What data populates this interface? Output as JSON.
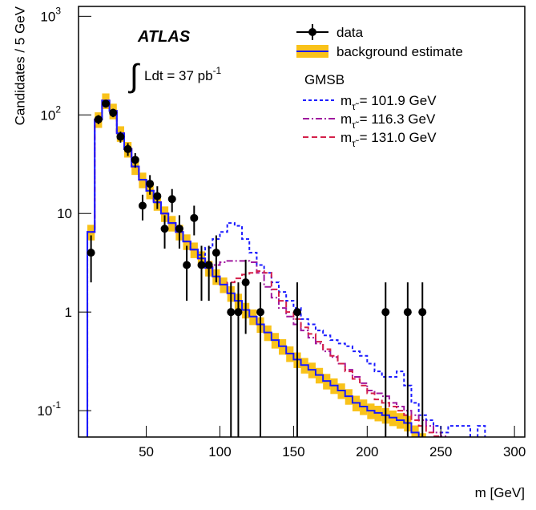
{
  "chart_data": {
    "type": "histogram",
    "y_label": "Candidates / 5 GeV",
    "x_label": "m [GeV]",
    "experiment": "ATLAS",
    "integral": "∫",
    "luminosity": "Ldt = 37 pb",
    "luminosity_exponent": "-1",
    "legend_header": "GMSB",
    "log_y": true,
    "xlim": [
      4,
      307
    ],
    "ylim": [
      0.054,
      1260
    ],
    "xticks": [
      50,
      100,
      150,
      200,
      250,
      300
    ],
    "yticks": [
      {
        "value": 0.1,
        "label": "10",
        "exponent": "-1"
      },
      1,
      10,
      {
        "value": 100,
        "label": "10",
        "exponent": "2"
      },
      {
        "value": 1000,
        "label": "10",
        "exponent": "3"
      }
    ],
    "bins": [
      10,
      15,
      20,
      25,
      30,
      35,
      40,
      45,
      50,
      55,
      60,
      65,
      70,
      75,
      80,
      85,
      90,
      95,
      100,
      105,
      110,
      115,
      120,
      125,
      130,
      135,
      140,
      145,
      150,
      155,
      160,
      165,
      170,
      175,
      180,
      185,
      190,
      195,
      200,
      205,
      210,
      215,
      220,
      225,
      230,
      235,
      240,
      245,
      250,
      255,
      260,
      265,
      270,
      275,
      280,
      285,
      290,
      295,
      300
    ],
    "data": {
      "name": "data",
      "color": "#000000",
      "x": [
        12.5,
        17.5,
        22.5,
        27.5,
        32.5,
        37.5,
        42.5,
        47.5,
        52.5,
        57.5,
        62.5,
        67.5,
        72.5,
        77.5,
        82.5,
        87.5,
        92.5,
        97.5,
        107.5,
        112.5,
        117.5,
        127.5,
        152.5,
        212.5,
        227.5,
        237.5
      ],
      "values": [
        4,
        90,
        130,
        105,
        60,
        45,
        35,
        12,
        20,
        15,
        7,
        14,
        7,
        3,
        9,
        3,
        3,
        4,
        1,
        1,
        2,
        1,
        1,
        1,
        1,
        1
      ],
      "errors": [
        2,
        9.5,
        11.4,
        10.2,
        7.7,
        6.7,
        5.9,
        3.5,
        4.5,
        3.9,
        2.6,
        3.7,
        2.6,
        1.7,
        3,
        1.7,
        1.7,
        2,
        1,
        1,
        1.4,
        1,
        1,
        1,
        1,
        1
      ]
    },
    "background": {
      "name": "background estimate",
      "color": "#1a1aff",
      "band_color": "#f9c21a",
      "relative_uncertainty": 0.18,
      "values": [
        6.5,
        90,
        140,
        110,
        65,
        45,
        30,
        22,
        17,
        13,
        10,
        8,
        6.5,
        5.2,
        4.3,
        3.5,
        2.8,
        2.3,
        1.9,
        1.55,
        1.3,
        1.05,
        0.9,
        0.75,
        0.62,
        0.52,
        0.45,
        0.38,
        0.33,
        0.29,
        0.26,
        0.23,
        0.2,
        0.18,
        0.16,
        0.14,
        0.12,
        0.11,
        0.1,
        0.095,
        0.09,
        0.085,
        0.08,
        0.075,
        0.06,
        0.05,
        0.045,
        0.04,
        0.035,
        0.03,
        0.03,
        0.03,
        0.03,
        0.03,
        0.03,
        0.03,
        0.03,
        0.03
      ]
    },
    "series": [
      {
        "symbol": "m",
        "symbol_subscript": "τ̃",
        "name": " = 101.9 GeV",
        "color": "#1a1aff",
        "dash": "4,3",
        "values": [
          6.5,
          90,
          140,
          110,
          65,
          45,
          30,
          22,
          17,
          13,
          10,
          8,
          6.5,
          5.2,
          4.3,
          3.8,
          4.5,
          5.5,
          6.5,
          8,
          7.5,
          5.5,
          4,
          3,
          2.5,
          2,
          1.6,
          1.3,
          1.1,
          0.85,
          0.75,
          0.65,
          0.58,
          0.52,
          0.48,
          0.45,
          0.4,
          0.36,
          0.3,
          0.25,
          0.22,
          0.22,
          0.25,
          0.18,
          0.12,
          0.09,
          0.08,
          0.07,
          0.06,
          0.07,
          0.07,
          0.07,
          0.05,
          0.07,
          0.05,
          0.04,
          0.04,
          0.04
        ]
      },
      {
        "symbol": "m",
        "symbol_subscript": "τ̃",
        "name": " = 116.3 GeV",
        "color": "#a0189f",
        "dash": "8,3,2,3",
        "values": [
          6.5,
          90,
          140,
          110,
          65,
          45,
          30,
          22,
          17,
          13,
          10,
          8,
          6.5,
          5.2,
          4.3,
          3.5,
          2.8,
          3,
          3.2,
          3.3,
          3.3,
          3.3,
          3.2,
          2.5,
          1.8,
          1.4,
          1.1,
          0.9,
          0.75,
          0.65,
          0.55,
          0.48,
          0.4,
          0.35,
          0.3,
          0.26,
          0.22,
          0.19,
          0.16,
          0.15,
          0.14,
          0.12,
          0.11,
          0.1,
          0.09,
          0.08,
          0.07,
          0.06,
          0.055,
          0.05,
          0.045,
          0.045,
          0.045,
          0.045,
          0.045,
          0.045,
          0.045,
          0.045
        ]
      },
      {
        "symbol": "m",
        "symbol_subscript": "τ̃",
        "name": " = 131.0 GeV",
        "color": "#d4204a",
        "dash": "7,4",
        "values": [
          6.5,
          90,
          140,
          110,
          65,
          45,
          30,
          22,
          17,
          13,
          10,
          8,
          6.5,
          5.2,
          4.3,
          3.5,
          2.8,
          2.3,
          1.9,
          2,
          2.2,
          2.4,
          2.5,
          2.6,
          2.5,
          1.7,
          1.3,
          1.0,
          0.85,
          0.7,
          0.6,
          0.5,
          0.42,
          0.36,
          0.3,
          0.25,
          0.21,
          0.18,
          0.15,
          0.13,
          0.12,
          0.11,
          0.1,
          0.09,
          0.08,
          0.07,
          0.06,
          0.055,
          0.05,
          0.045,
          0.045,
          0.045,
          0.045,
          0.045,
          0.045,
          0.045,
          0.045,
          0.045
        ]
      }
    ]
  }
}
